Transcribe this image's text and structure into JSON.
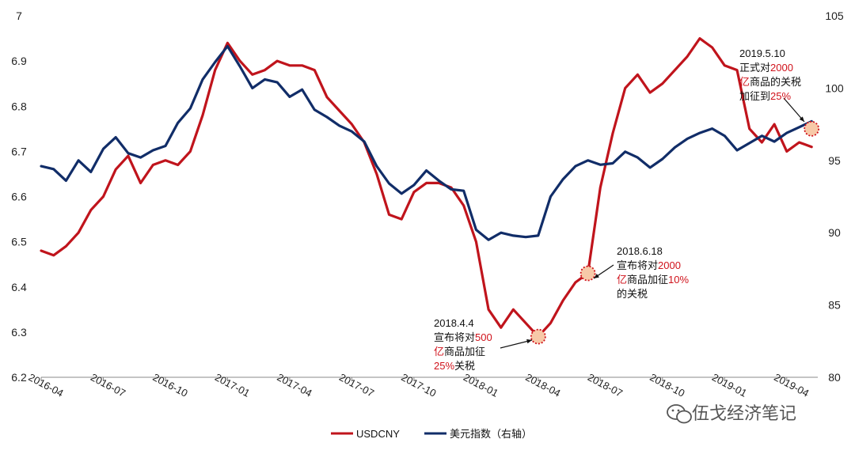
{
  "chart_data": {
    "type": "line",
    "title": "",
    "xlabel": "",
    "ylabel_left": "",
    "ylabel_right": "",
    "ylim_left": [
      6.2,
      7.0
    ],
    "ylim_right": [
      80,
      105
    ],
    "ticks_left": [
      "6.2",
      "6.3",
      "6.4",
      "6.5",
      "6.6",
      "6.7",
      "6.8",
      "6.9",
      "7"
    ],
    "ticks_right": [
      "80",
      "85",
      "90",
      "95",
      "100",
      "105"
    ],
    "x_ticks": [
      "2016-04",
      "2016-07",
      "2016-10",
      "2017-01",
      "2017-04",
      "2017-07",
      "2017-10",
      "2018-01",
      "2018-04",
      "2018-07",
      "2018-10",
      "2019-01",
      "2019-04"
    ],
    "grid": false,
    "legend_position": "bottom",
    "series": [
      {
        "name": "USDCNY",
        "axis": "left",
        "color": "#c0141c",
        "x": [
          2016.25,
          2016.3,
          2016.35,
          2016.4,
          2016.45,
          2016.5,
          2016.55,
          2016.6,
          2016.65,
          2016.7,
          2016.75,
          2016.8,
          2016.85,
          2016.9,
          2016.95,
          2017.0,
          2017.05,
          2017.1,
          2017.15,
          2017.2,
          2017.25,
          2017.3,
          2017.35,
          2017.4,
          2017.45,
          2017.5,
          2017.55,
          2017.6,
          2017.65,
          2017.7,
          2017.75,
          2017.8,
          2017.85,
          2017.9,
          2017.95,
          2018.0,
          2018.05,
          2018.1,
          2018.15,
          2018.2,
          2018.25,
          2018.3,
          2018.35,
          2018.4,
          2018.45,
          2018.5,
          2018.55,
          2018.6,
          2018.65,
          2018.7,
          2018.75,
          2018.8,
          2018.85,
          2018.9,
          2018.95,
          2019.0,
          2019.05,
          2019.1,
          2019.15,
          2019.2,
          2019.25,
          2019.3,
          2019.35
        ],
        "values": [
          6.48,
          6.47,
          6.49,
          6.52,
          6.57,
          6.6,
          6.66,
          6.69,
          6.63,
          6.67,
          6.68,
          6.67,
          6.7,
          6.78,
          6.88,
          6.94,
          6.9,
          6.87,
          6.88,
          6.9,
          6.89,
          6.89,
          6.88,
          6.82,
          6.79,
          6.76,
          6.72,
          6.65,
          6.56,
          6.55,
          6.61,
          6.63,
          6.63,
          6.62,
          6.58,
          6.5,
          6.35,
          6.31,
          6.35,
          6.32,
          6.29,
          6.32,
          6.37,
          6.41,
          6.43,
          6.62,
          6.74,
          6.84,
          6.87,
          6.83,
          6.85,
          6.88,
          6.91,
          6.95,
          6.93,
          6.89,
          6.88,
          6.75,
          6.72,
          6.76,
          6.7,
          6.72,
          6.71
        ]
      },
      {
        "name": "美元指数（右轴）",
        "axis": "right",
        "color": "#112d68",
        "x": [
          2016.25,
          2016.3,
          2016.35,
          2016.4,
          2016.45,
          2016.5,
          2016.55,
          2016.6,
          2016.65,
          2016.7,
          2016.75,
          2016.8,
          2016.85,
          2016.9,
          2016.95,
          2017.0,
          2017.05,
          2017.1,
          2017.15,
          2017.2,
          2017.25,
          2017.3,
          2017.35,
          2017.4,
          2017.45,
          2017.5,
          2017.55,
          2017.6,
          2017.65,
          2017.7,
          2017.75,
          2017.8,
          2017.85,
          2017.9,
          2017.95,
          2018.0,
          2018.05,
          2018.1,
          2018.15,
          2018.2,
          2018.25,
          2018.3,
          2018.35,
          2018.4,
          2018.45,
          2018.5,
          2018.55,
          2018.6,
          2018.65,
          2018.7,
          2018.75,
          2018.8,
          2018.85,
          2018.9,
          2018.95,
          2019.0,
          2019.05,
          2019.1,
          2019.15,
          2019.2,
          2019.25,
          2019.3,
          2019.35
        ],
        "values": [
          94.6,
          94.4,
          93.6,
          95.0,
          94.2,
          95.8,
          96.6,
          95.5,
          95.2,
          95.7,
          96.0,
          97.6,
          98.6,
          100.6,
          101.8,
          102.9,
          101.5,
          100.0,
          100.6,
          100.4,
          99.4,
          99.9,
          98.5,
          98.0,
          97.4,
          97.0,
          96.3,
          94.6,
          93.4,
          92.7,
          93.3,
          94.3,
          93.6,
          93.0,
          92.9,
          90.2,
          89.5,
          90.0,
          89.8,
          89.7,
          89.8,
          92.5,
          93.7,
          94.6,
          95.0,
          94.7,
          94.8,
          95.6,
          95.2,
          94.5,
          95.1,
          95.9,
          96.5,
          96.9,
          97.2,
          96.7,
          95.7,
          96.2,
          96.7,
          96.3,
          96.9,
          97.3,
          97.7
        ]
      }
    ],
    "annotations": [
      {
        "title": "2018.4.4",
        "lines": [
          [
            {
              "t": "宣布将对",
              "red": false
            },
            {
              "t": "500",
              "red": true
            }
          ],
          [
            {
              "t": "亿",
              "red": true
            },
            {
              "t": "商品加征",
              "red": false
            }
          ],
          [
            {
              "t": "25%",
              "red": true
            },
            {
              "t": "关税",
              "red": false
            }
          ]
        ],
        "x": 2018.25,
        "y": 6.29
      },
      {
        "title": "2018.6.18",
        "lines": [
          [
            {
              "t": "宣布将对",
              "red": false
            },
            {
              "t": "2000",
              "red": true
            }
          ],
          [
            {
              "t": "亿",
              "red": true
            },
            {
              "t": "商品加征",
              "red": false
            },
            {
              "t": "10%",
              "red": true
            }
          ],
          [
            {
              "t": "的关税",
              "red": false
            }
          ]
        ],
        "x": 2018.45,
        "y": 6.43
      },
      {
        "title": "2019.5.10",
        "lines": [
          [
            {
              "t": "正式对",
              "red": false
            },
            {
              "t": "2000",
              "red": true
            }
          ],
          [
            {
              "t": "亿",
              "red": true
            },
            {
              "t": "商品的关税",
              "red": false
            }
          ],
          [
            {
              "t": "加征到",
              "red": false
            },
            {
              "t": "25%",
              "red": true
            }
          ]
        ],
        "x": 2019.35,
        "y": 6.75
      }
    ]
  },
  "watermark": {
    "text": "伍戈经济笔记",
    "icon": "wechat-icon"
  }
}
